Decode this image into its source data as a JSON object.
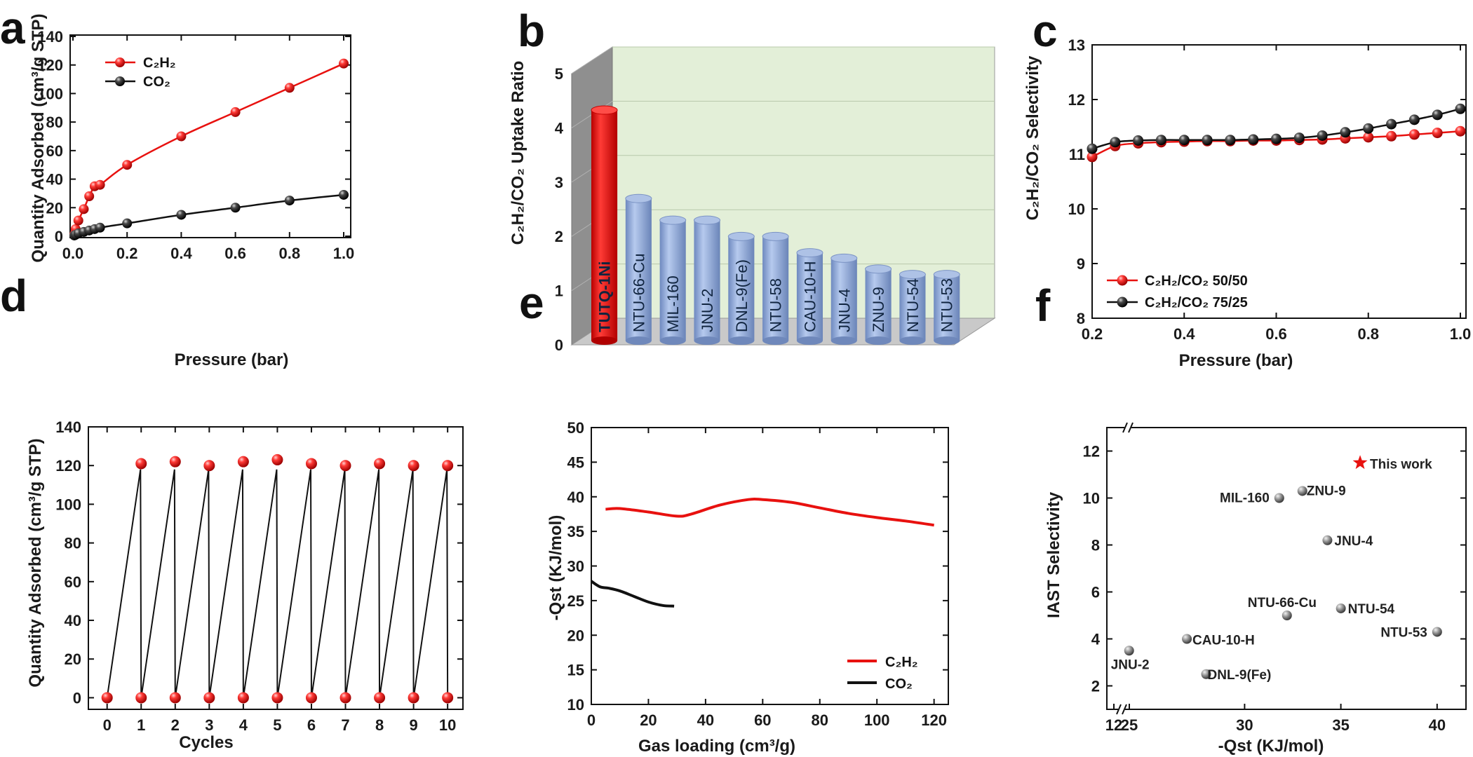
{
  "colors": {
    "red": "#e8110f",
    "black": "#111111",
    "blue_bar": "#8ba6d8",
    "red_bar": "#e8110f",
    "green_bg": "#e3efd8",
    "gray_sphere": "#8a8a8a"
  },
  "chart_data": [
    {
      "panel": "a",
      "type": "line",
      "xlabel": "Pressure (bar)",
      "ylabel": "Quantity Adsorbed (cm³/g STP)",
      "xlim": [
        0.0,
        1.0
      ],
      "ylim": [
        0,
        140
      ],
      "xticks": [
        "0.0",
        "0.2",
        "0.4",
        "0.6",
        "0.8",
        "1.0"
      ],
      "yticks": [
        "0",
        "20",
        "40",
        "60",
        "80",
        "100",
        "120",
        "140"
      ],
      "legend_position": "top-left",
      "series": [
        {
          "name": "C₂H₂",
          "color": "#e8110f",
          "x": [
            0.005,
            0.01,
            0.02,
            0.04,
            0.06,
            0.08,
            0.1,
            0.2,
            0.4,
            0.6,
            0.8,
            1.0
          ],
          "y": [
            1,
            5,
            11,
            19,
            28,
            35,
            36,
            50,
            70,
            87,
            104,
            121
          ]
        },
        {
          "name": "CO₂",
          "color": "#111111",
          "x": [
            0.005,
            0.01,
            0.02,
            0.04,
            0.06,
            0.08,
            0.1,
            0.2,
            0.4,
            0.6,
            0.8,
            1.0
          ],
          "y": [
            0.5,
            1,
            2,
            3,
            4,
            5,
            6,
            9,
            15,
            20,
            25,
            29
          ]
        }
      ]
    },
    {
      "panel": "b",
      "type": "bar",
      "ylabel": "C₂H₂/CO₂ Uptake Ratio",
      "ylim": [
        0,
        5
      ],
      "yticks": [
        "0",
        "1",
        "2",
        "3",
        "4",
        "5"
      ],
      "categories": [
        "TUTQ-1Ni",
        "NTU-66-Cu",
        "MIL-160",
        "JNU-2",
        "DNL-9(Fe)",
        "NTU-58",
        "CAU-10-H",
        "JNU-4",
        "ZNU-9",
        "NTU-54",
        "NTU-53"
      ],
      "values": [
        4.25,
        2.62,
        2.22,
        2.22,
        1.92,
        1.92,
        1.62,
        1.52,
        1.32,
        1.22,
        1.22
      ],
      "highlight": "TUTQ-1Ni"
    },
    {
      "panel": "c",
      "type": "line",
      "xlabel": "Pressure (bar)",
      "ylabel": "C₂H₂/CO₂ Selectivity",
      "xlim": [
        0.2,
        1.0
      ],
      "ylim": [
        8,
        13
      ],
      "xticks": [
        "0.2",
        "0.4",
        "0.6",
        "0.8",
        "1.0"
      ],
      "yticks": [
        "8",
        "9",
        "10",
        "11",
        "12",
        "13"
      ],
      "legend_position": "bottom-left",
      "series": [
        {
          "name": "C₂H₂/CO₂ 50/50",
          "color": "#e8110f",
          "x": [
            0.2,
            0.25,
            0.3,
            0.35,
            0.4,
            0.45,
            0.5,
            0.55,
            0.6,
            0.65,
            0.7,
            0.75,
            0.8,
            0.85,
            0.9,
            0.95,
            1.0
          ],
          "y": [
            10.95,
            11.15,
            11.2,
            11.22,
            11.23,
            11.24,
            11.24,
            11.25,
            11.25,
            11.26,
            11.27,
            11.29,
            11.31,
            11.33,
            11.36,
            11.39,
            11.42
          ]
        },
        {
          "name": "C₂H₂/CO₂ 75/25",
          "color": "#111111",
          "x": [
            0.2,
            0.25,
            0.3,
            0.35,
            0.4,
            0.45,
            0.5,
            0.55,
            0.6,
            0.65,
            0.7,
            0.75,
            0.8,
            0.85,
            0.9,
            0.95,
            1.0
          ],
          "y": [
            11.1,
            11.22,
            11.25,
            11.26,
            11.26,
            11.26,
            11.26,
            11.27,
            11.28,
            11.3,
            11.34,
            11.4,
            11.47,
            11.55,
            11.63,
            11.72,
            11.83
          ]
        }
      ]
    },
    {
      "panel": "d",
      "type": "line",
      "xlabel": "Cycles",
      "ylabel": "Quantity Adsorbed (cm³/g STP)",
      "xlim": [
        0,
        10
      ],
      "ylim": [
        0,
        140
      ],
      "xticks": [
        "0",
        "1",
        "2",
        "3",
        "4",
        "5",
        "6",
        "7",
        "8",
        "9",
        "10"
      ],
      "yticks": [
        "0",
        "20",
        "40",
        "60",
        "80",
        "100",
        "120",
        "140"
      ],
      "peaks": [
        121,
        122,
        120,
        122,
        123,
        121,
        120,
        121,
        120,
        120
      ],
      "baseline": 0,
      "line_peak": 118
    },
    {
      "panel": "e",
      "type": "line",
      "xlabel": "Gas loading (cm³/g)",
      "ylabel": "-Qst (KJ/mol)",
      "xlim": [
        0,
        125
      ],
      "ylim": [
        10,
        50
      ],
      "xticks": [
        "0",
        "20",
        "40",
        "60",
        "80",
        "100",
        "120"
      ],
      "yticks": [
        "10",
        "15",
        "20",
        "25",
        "30",
        "35",
        "40",
        "45",
        "50"
      ],
      "legend_position": "bottom-right",
      "series": [
        {
          "name": "C₂H₂",
          "color": "#e8110f",
          "x": [
            5,
            10,
            20,
            30,
            35,
            45,
            55,
            60,
            70,
            80,
            90,
            100,
            110,
            120
          ],
          "y": [
            38.2,
            38.3,
            37.8,
            37.2,
            37.5,
            38.8,
            39.6,
            39.6,
            39.2,
            38.4,
            37.6,
            37.0,
            36.5,
            35.9
          ]
        },
        {
          "name": "CO₂",
          "color": "#111111",
          "x": [
            0,
            3,
            6,
            10,
            15,
            20,
            25,
            29
          ],
          "y": [
            27.8,
            27.0,
            26.8,
            26.4,
            25.6,
            24.8,
            24.3,
            24.2
          ]
        }
      ]
    },
    {
      "panel": "f",
      "type": "scatter",
      "xlabel": "-Qst (KJ/mol)",
      "ylabel": "IAST Selectivity",
      "xlim": [
        23.5,
        41.5
      ],
      "ylim": [
        1,
        13
      ],
      "xticks": [
        "12",
        "25",
        "30",
        "35",
        "40"
      ],
      "yticks": [
        "2",
        "4",
        "6",
        "8",
        "10",
        "12"
      ],
      "points": [
        {
          "label": "This work",
          "x": 36,
          "y": 11.5,
          "highlight": true
        },
        {
          "label": "ZNU-9",
          "x": 33,
          "y": 10.3
        },
        {
          "label": "MIL-160",
          "x": 31.8,
          "y": 10.0
        },
        {
          "label": "JNU-4",
          "x": 34.3,
          "y": 8.2
        },
        {
          "label": "NTU-66-Cu",
          "x": 32.2,
          "y": 5.0
        },
        {
          "label": "NTU-54",
          "x": 35.0,
          "y": 5.3
        },
        {
          "label": "NTU-53",
          "x": 40.0,
          "y": 4.3
        },
        {
          "label": "CAU-10-H",
          "x": 27.0,
          "y": 4.0
        },
        {
          "label": "JNU-2",
          "x": 24.0,
          "y": 3.5
        },
        {
          "label": "DNL-9(Fe)",
          "x": 28.0,
          "y": 2.5
        }
      ]
    }
  ],
  "panel_labels": [
    "a",
    "b",
    "c",
    "d",
    "e",
    "f"
  ]
}
